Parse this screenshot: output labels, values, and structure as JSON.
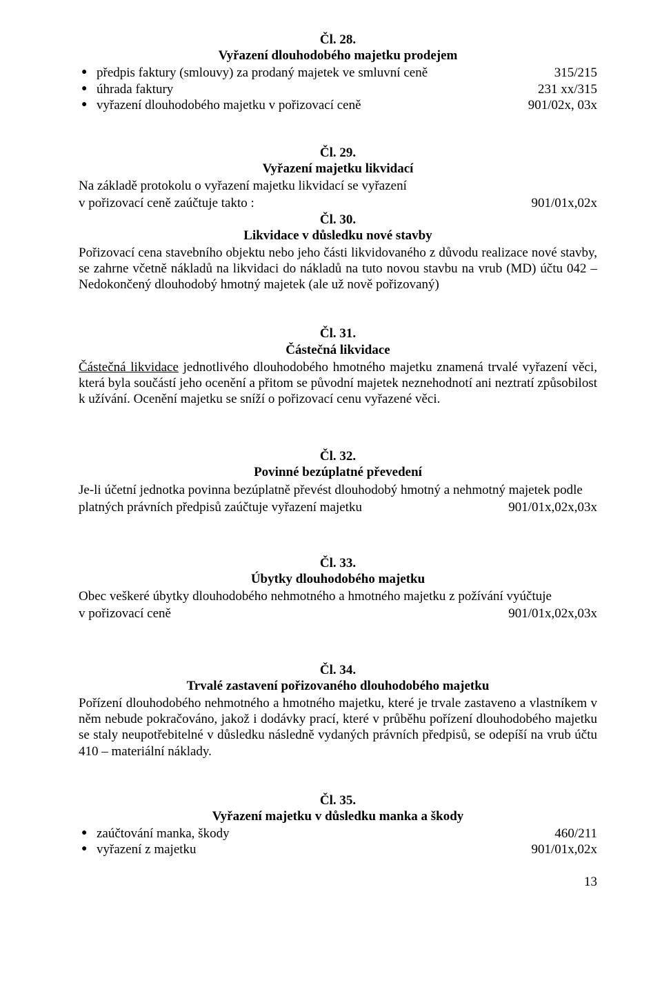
{
  "a28": {
    "num": "Čl. 28.",
    "title": "Vyřazení dlouhodobého majetku prodejem",
    "items": [
      {
        "text": "předpis faktury (smlouvy) za prodaný majetek ve smluvní ceně",
        "val": "315/215"
      },
      {
        "text": "úhrada faktury",
        "val": "231 xx/315"
      },
      {
        "text": "vyřazení dlouhodobého majetku v pořizovací ceně",
        "val": "901/02x, 03x"
      }
    ]
  },
  "a29": {
    "num": "Čl. 29.",
    "title": "Vyřazení majetku likvidací",
    "line1_left": "Na základě protokolu o vyřazení majetku likvidací se vyřazení",
    "line2_left": "v pořizovací ceně zaúčtuje takto :",
    "line2_right": "901/01x,02x"
  },
  "a30": {
    "num": "Čl. 30.",
    "title": "Likvidace v důsledku nové stavby",
    "para": "Pořizovací cena stavebního objektu nebo jeho části likvidovaného z důvodu realizace nové stavby, se zahrne včetně nákladů na likvidaci do nákladů na tuto novou stavbu na  vrub (MD) účtu 042 – Nedokončený dlouhodobý hmotný majetek (ale už nově pořizovaný)"
  },
  "a31": {
    "num": "Čl. 31.",
    "title": "Částečná likvidace",
    "para": "Částečná likvidace jednotlivého dlouhodobého hmotného majetku znamená trvalé vyřazení věci, která byla součástí jeho ocenění a přitom se původní majetek neznehodnotí ani neztratí způsobilost k užívání. Ocenění majetku se sníží o pořizovací cenu vyřazené věci.",
    "underline_lead": "Částečná likvidace"
  },
  "a32": {
    "num": "Čl. 32.",
    "title": "Povinné bezúplatné převedení",
    "line1": "Je-li účetní jednotka povinna bezúplatně převést dlouhodobý hmotný a nehmotný majetek podle",
    "line2_left": "platných právních předpisů zaúčtuje vyřazení majetku",
    "line2_right": "901/01x,02x,03x"
  },
  "a33": {
    "num": "Čl. 33.",
    "title": "Úbytky dlouhodobého majetku",
    "line1": "Obec veškeré úbytky dlouhodobého nehmotného a hmotného majetku z požívání vyúčtuje",
    "line2_left": "v pořizovací ceně",
    "line2_right": "901/01x,02x,03x"
  },
  "a34": {
    "num": "Čl. 34.",
    "title": "Trvalé zastavení pořizovaného dlouhodobého majetku",
    "para": "Pořízení dlouhodobého nehmotného a hmotného majetku, které je trvale zastaveno a vlastníkem v něm nebude pokračováno, jakož i dodávky prací, které v průběhu pořízení dlouhodobého majetku se staly neupotřebitelné v důsledku následně vydaných právních předpisů, se odepíší na vrub účtu 410 – materiální náklady."
  },
  "a35": {
    "num": "Čl. 35.",
    "title": "Vyřazení majetku v důsledku manka a škody",
    "items": [
      {
        "text": "zaúčtování manka, škody",
        "val": "460/211"
      },
      {
        "text": "vyřazení z majetku",
        "val": "901/01x,02x"
      }
    ]
  },
  "page_num": "13"
}
